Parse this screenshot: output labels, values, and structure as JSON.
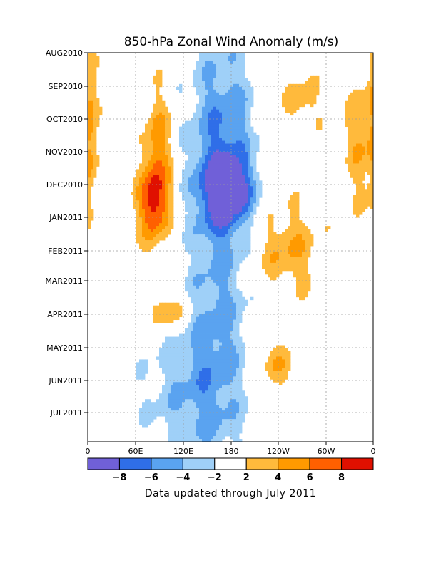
{
  "chart_data": {
    "type": "heatmap",
    "title": "850-hPa Zonal Wind Anomaly (m/s)",
    "footer": "Data updated through July 2011",
    "y_ticks": [
      "AUG2010",
      "SEP2010",
      "OCT2010",
      "NOV2010",
      "DEC2010",
      "JAN2011",
      "FEB2011",
      "MAR2011",
      "APR2011",
      "MAY2011",
      "JUN2011",
      "JUL2011"
    ],
    "x_ticks": [
      "0",
      "60E",
      "120E",
      "180",
      "120W",
      "60W",
      "0"
    ],
    "x_range": [
      0,
      360
    ],
    "grid": true,
    "colorbar": {
      "levels": [
        -8,
        -6,
        -4,
        -2,
        2,
        4,
        6,
        8
      ],
      "labels": [
        "-8",
        "-6",
        "-4",
        "-2",
        "2",
        "4",
        "6",
        "8"
      ],
      "colors": [
        "#7060d8",
        "#2f6ee8",
        "#5aa3f0",
        "#9fd0f8",
        "#ffffff",
        "#ffba3c",
        "#ff9a00",
        "#ff6000",
        "#e01000"
      ]
    },
    "anomaly_features": [
      {
        "name": "dateline-easterly-core",
        "lon": 175,
        "month": 4.2,
        "sx": 22,
        "sy": 0.7,
        "value": -8.5
      },
      {
        "name": "dateline-easterly-band-fall",
        "lon": 170,
        "month": 2.5,
        "sx": 30,
        "sy": 2.3,
        "value": -5.5
      },
      {
        "name": "dateline-easterly-band-spring",
        "lon": 165,
        "month": 8.5,
        "sx": 28,
        "sy": 3.2,
        "value": -4.0
      },
      {
        "name": "west-pacific-easterly-summer",
        "lon": 120,
        "month": 10.5,
        "sx": 40,
        "sy": 1.6,
        "value": -3.2
      },
      {
        "name": "indian-ocean-westerly-winter",
        "lon": 83,
        "month": 4.6,
        "sx": 14,
        "sy": 0.8,
        "value": 8.5
      },
      {
        "name": "indian-ocean-westerly-fall",
        "lon": 88,
        "month": 2.8,
        "sx": 12,
        "sy": 1.2,
        "value": 5.0
      },
      {
        "name": "indian-ocean-westerly-apr",
        "lon": 100,
        "month": 7.9,
        "sx": 16,
        "sy": 0.35,
        "value": 5.2
      },
      {
        "name": "east-pacific-westerly-feb",
        "lon": 250,
        "month": 6.0,
        "sx": 30,
        "sy": 1.0,
        "value": 4.0
      },
      {
        "name": "east-pacific-westerly-may",
        "lon": 240,
        "month": 9.6,
        "sx": 18,
        "sy": 0.5,
        "value": 3.6
      },
      {
        "name": "atlantic-westerly-fall",
        "lon": 345,
        "month": 2.5,
        "sx": 15,
        "sy": 1.5,
        "value": 3.8
      },
      {
        "name": "east-pacific-westerly-sep",
        "lon": 270,
        "month": 1.5,
        "sx": 18,
        "sy": 0.6,
        "value": 3.2
      },
      {
        "name": "greenwich-westerly-fall",
        "lon": 3,
        "month": 2.5,
        "sx": 6,
        "sy": 2.2,
        "value": 3.4
      }
    ]
  }
}
